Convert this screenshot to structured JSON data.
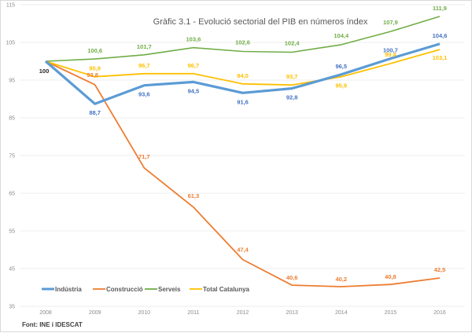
{
  "chart_data": {
    "type": "line",
    "title": "Gràfic 3.1 - Evolució sectorial del PIB en números índex",
    "xlabel": "",
    "ylabel": "",
    "x": [
      "2008",
      "2009",
      "2010",
      "2011",
      "2012",
      "2013",
      "2014",
      "2015",
      "2016"
    ],
    "ylim": [
      35,
      115
    ],
    "yticks": [
      "35",
      "45",
      "55",
      "65",
      "75",
      "85",
      "95",
      "105",
      "115"
    ],
    "grid": true,
    "legend_position": "bottom",
    "base_label": "100",
    "series": [
      {
        "name": "Indústria",
        "color": "#5B9BD5",
        "values": [
          100,
          88.7,
          93.6,
          94.5,
          91.6,
          92.8,
          96.5,
          100.7,
          104.6
        ],
        "labels": [
          "",
          "88,7",
          "93,6",
          "94,5",
          "91,6",
          "92,8",
          "96,5",
          "100,7",
          "104,6"
        ]
      },
      {
        "name": "Construcció",
        "color": "#ED7D31",
        "values": [
          100,
          93.8,
          71.7,
          61.3,
          47.4,
          40.6,
          40.2,
          40.8,
          42.5
        ],
        "labels": [
          "",
          "93,8",
          "71,7",
          "61,3",
          "47,4",
          "40,6",
          "40,2",
          "40,8",
          "42,5"
        ]
      },
      {
        "name": "Serveis",
        "color": "#70AD47",
        "values": [
          100,
          100.6,
          101.7,
          103.6,
          102.6,
          102.4,
          104.4,
          107.9,
          111.9
        ],
        "labels": [
          "",
          "100,6",
          "101,7",
          "103,6",
          "102,6",
          "102,4",
          "104,4",
          "107,9",
          "111,9"
        ]
      },
      {
        "name": "Total Catalunya",
        "color": "#FFC000",
        "values": [
          100,
          95.9,
          96.7,
          96.7,
          94.0,
          93.7,
          95.9,
          99.4,
          103.1
        ],
        "labels": [
          "",
          "95,9",
          "96,7",
          "96,7",
          "94,0",
          "93,7",
          "95,9",
          "99,4",
          "103,1"
        ]
      }
    ],
    "source": "Font: INE i IDESCAT"
  }
}
